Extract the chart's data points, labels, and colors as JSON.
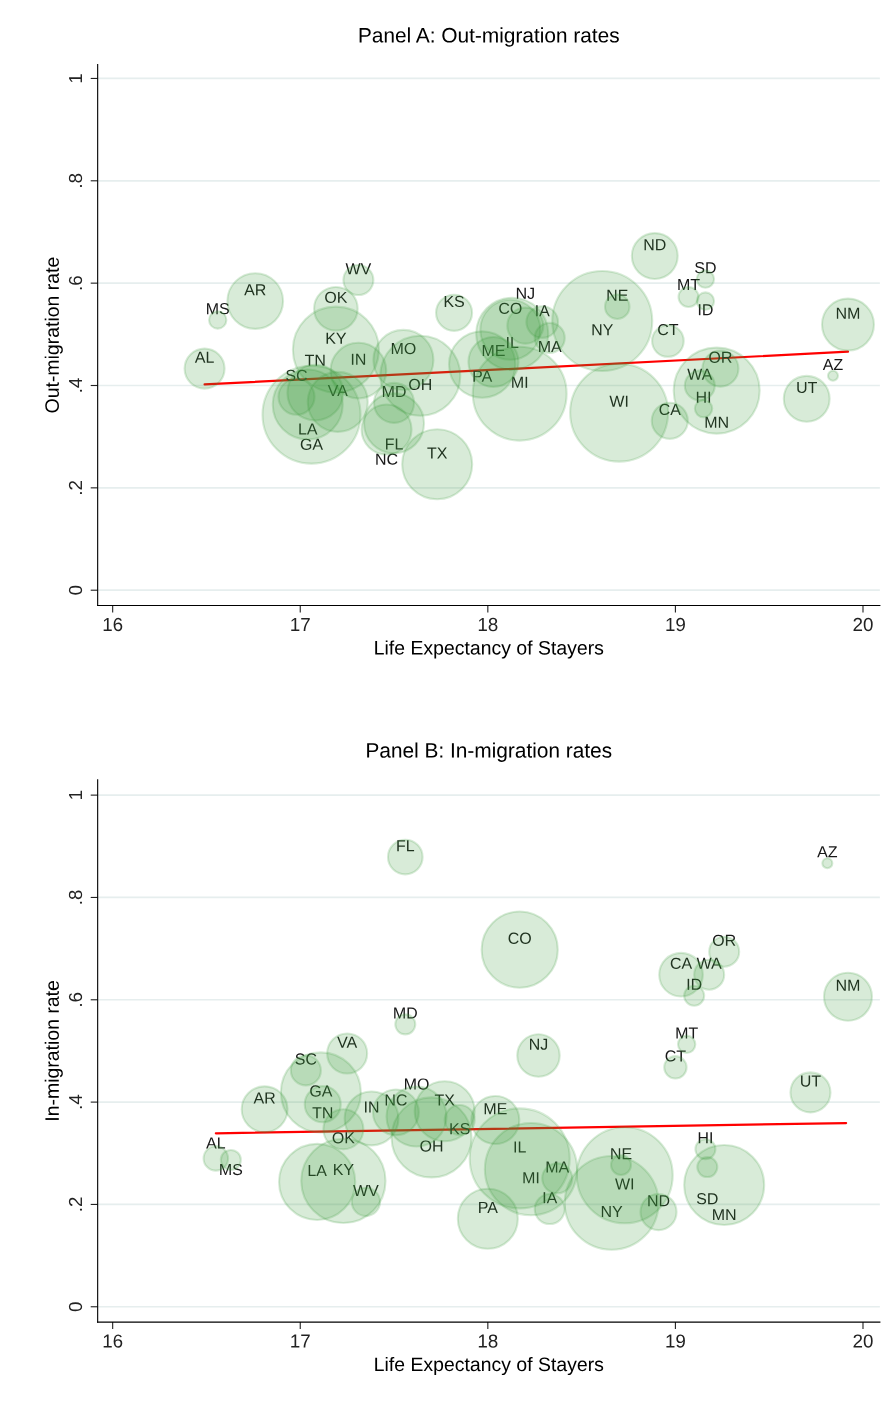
{
  "chart_data": [
    {
      "type": "bubble",
      "title": "Panel A: Out-migration rates",
      "xlabel": "Life Expectancy of Stayers",
      "ylabel": "Out-migration rate",
      "xlim": [
        15.92,
        20.09
      ],
      "ylim": [
        -0.03,
        1.027
      ],
      "xticks": [
        16,
        17,
        18,
        19,
        20
      ],
      "yticks": [
        {
          "value": 0,
          "label": "0"
        },
        {
          "value": 0.2,
          "label": ".2"
        },
        {
          "value": 0.4,
          "label": ".4"
        },
        {
          "value": 0.6,
          "label": ".6"
        },
        {
          "value": 0.8,
          "label": ".8"
        },
        {
          "value": 1,
          "label": "1"
        }
      ],
      "grid": "y",
      "legend": false,
      "series": [
        {
          "color": "#3c9a3c",
          "x": [
            16.49,
            16.56,
            16.76,
            17.31,
            17.19,
            17.19,
            17.31,
            16.98,
            17.08,
            17.04,
            17.06,
            17.2,
            17.55,
            17.64,
            17.5,
            17.5,
            17.46,
            17.73,
            17.82,
            17.97,
            18.03,
            18.17,
            18.12,
            18.13,
            18.2,
            18.29,
            18.33,
            18.61,
            18.69,
            18.7,
            18.89,
            19.16,
            19.07,
            19.16,
            18.96,
            18.97,
            19.24,
            19.13,
            19.22,
            19.15,
            19.7,
            19.84,
            19.92
          ],
          "values": [
            0.433,
            0.528,
            0.565,
            0.606,
            0.55,
            0.47,
            0.429,
            0.378,
            0.386,
            0.363,
            0.343,
            0.368,
            0.45,
            0.419,
            0.366,
            0.326,
            0.314,
            0.246,
            0.542,
            0.441,
            0.446,
            0.384,
            0.509,
            0.501,
            0.517,
            0.524,
            0.493,
            0.526,
            0.554,
            0.347,
            0.653,
            0.608,
            0.573,
            0.565,
            0.487,
            0.331,
            0.433,
            0.4,
            0.39,
            0.355,
            0.374,
            0.419,
            0.519
          ],
          "sizes": [
            0.16,
            0.03,
            0.31,
            0.09,
            0.19,
            0.74,
            0.31,
            0.13,
            0.31,
            0.49,
            0.96,
            0.36,
            0.36,
            0.64,
            0.16,
            0.36,
            0.25,
            0.49,
            0.13,
            0.44,
            0.25,
            0.88,
            0.36,
            0.52,
            0.13,
            0.1,
            0.09,
            1.0,
            0.06,
            0.96,
            0.21,
            0.03,
            0.04,
            0.03,
            0.1,
            0.13,
            0.13,
            0.09,
            0.74,
            0.03,
            0.21,
            0.01,
            0.27
          ],
          "value_labels": [
            "AL",
            "MS",
            "AR",
            "WV",
            "OK",
            "KY",
            "IN",
            "SC",
            "TN",
            "LA",
            "GA",
            "VA",
            "MO",
            "OH",
            "MD",
            "FL",
            "NC",
            "TX",
            "KS",
            "PA",
            "ME",
            "MI",
            "CO",
            "IL",
            "NJ",
            "IA",
            "MA",
            "NY",
            "NE",
            "WI",
            "ND",
            "SD",
            "MT",
            "ID",
            "CT",
            "CA",
            "OR",
            "WA",
            "MN",
            "HI",
            "UT",
            "AZ",
            "NM"
          ]
        },
        {
          "type": "line",
          "color": "#ff0000",
          "x": [
            16.49,
            19.92
          ],
          "values": [
            0.402,
            0.466
          ]
        }
      ]
    },
    {
      "type": "bubble",
      "title": "Panel B: In-migration rates",
      "xlabel": "Life Expectancy of Stayers",
      "ylabel": "In-migration rate",
      "xlim": [
        15.92,
        20.09
      ],
      "ylim": [
        -0.03,
        1.03
      ],
      "xticks": [
        16,
        17,
        18,
        19,
        20
      ],
      "yticks": [
        {
          "value": 0,
          "label": "0"
        },
        {
          "value": 0.2,
          "label": ".2"
        },
        {
          "value": 0.4,
          "label": ".4"
        },
        {
          "value": 0.6,
          "label": ".6"
        },
        {
          "value": 0.8,
          "label": ".8"
        },
        {
          "value": 1,
          "label": "1"
        }
      ],
      "grid": "y",
      "legend": false,
      "series": [
        {
          "color": "#3c9a3c",
          "x": [
            17.56,
            19.81,
            18.17,
            19.26,
            19.03,
            19.18,
            19.1,
            19.92,
            17.56,
            17.25,
            18.27,
            19.06,
            19.0,
            17.03,
            17.11,
            19.72,
            17.12,
            16.81,
            17.38,
            17.51,
            17.62,
            17.77,
            17.85,
            18.04,
            17.23,
            17.7,
            16.55,
            16.63,
            18.17,
            18.23,
            18.37,
            19.16,
            19.17,
            18.71,
            18.73,
            19.26,
            17.09,
            17.23,
            17.35,
            18.33,
            18.66,
            18.91,
            18.0
          ],
          "values": [
            0.879,
            0.867,
            0.698,
            0.694,
            0.649,
            0.649,
            0.608,
            0.606,
            0.552,
            0.495,
            0.491,
            0.513,
            0.468,
            0.462,
            0.419,
            0.419,
            0.396,
            0.386,
            0.368,
            0.38,
            0.372,
            0.382,
            0.365,
            0.365,
            0.347,
            0.331,
            0.29,
            0.287,
            0.29,
            0.269,
            0.251,
            0.308,
            0.273,
            0.277,
            0.257,
            0.238,
            0.244,
            0.246,
            0.205,
            0.191,
            0.203,
            0.185,
            0.172
          ],
          "sizes": [
            0.12,
            0.01,
            0.58,
            0.09,
            0.19,
            0.09,
            0.04,
            0.23,
            0.04,
            0.16,
            0.18,
            0.03,
            0.05,
            0.09,
            0.64,
            0.16,
            0.13,
            0.21,
            0.29,
            0.21,
            0.36,
            0.36,
            0.09,
            0.23,
            0.16,
            0.64,
            0.06,
            0.04,
            1.0,
            0.85,
            0.09,
            0.04,
            0.04,
            0.04,
            0.92,
            0.64,
            0.58,
            0.71,
            0.08,
            0.09,
            0.88,
            0.13,
            0.36
          ],
          "value_labels": [
            "FL",
            "AZ",
            "CO",
            "OR",
            "CA",
            "WA",
            "ID",
            "NM",
            "MD",
            "VA",
            "NJ",
            "MT",
            "CT",
            "SC",
            "GA",
            "UT",
            "TN",
            "AR",
            "IN",
            "NC",
            "MO",
            "TX",
            "KS",
            "ME",
            "OK",
            "OH",
            "AL",
            "MS",
            "IL",
            "MI",
            "MA",
            "HI",
            "SD",
            "NE",
            "WI",
            "MN",
            "LA",
            "KY",
            "WV",
            "IA",
            "NY",
            "ND",
            "PA"
          ]
        },
        {
          "type": "line",
          "color": "#ff0000",
          "x": [
            16.55,
            19.91
          ],
          "values": [
            0.339,
            0.359
          ]
        }
      ]
    }
  ]
}
